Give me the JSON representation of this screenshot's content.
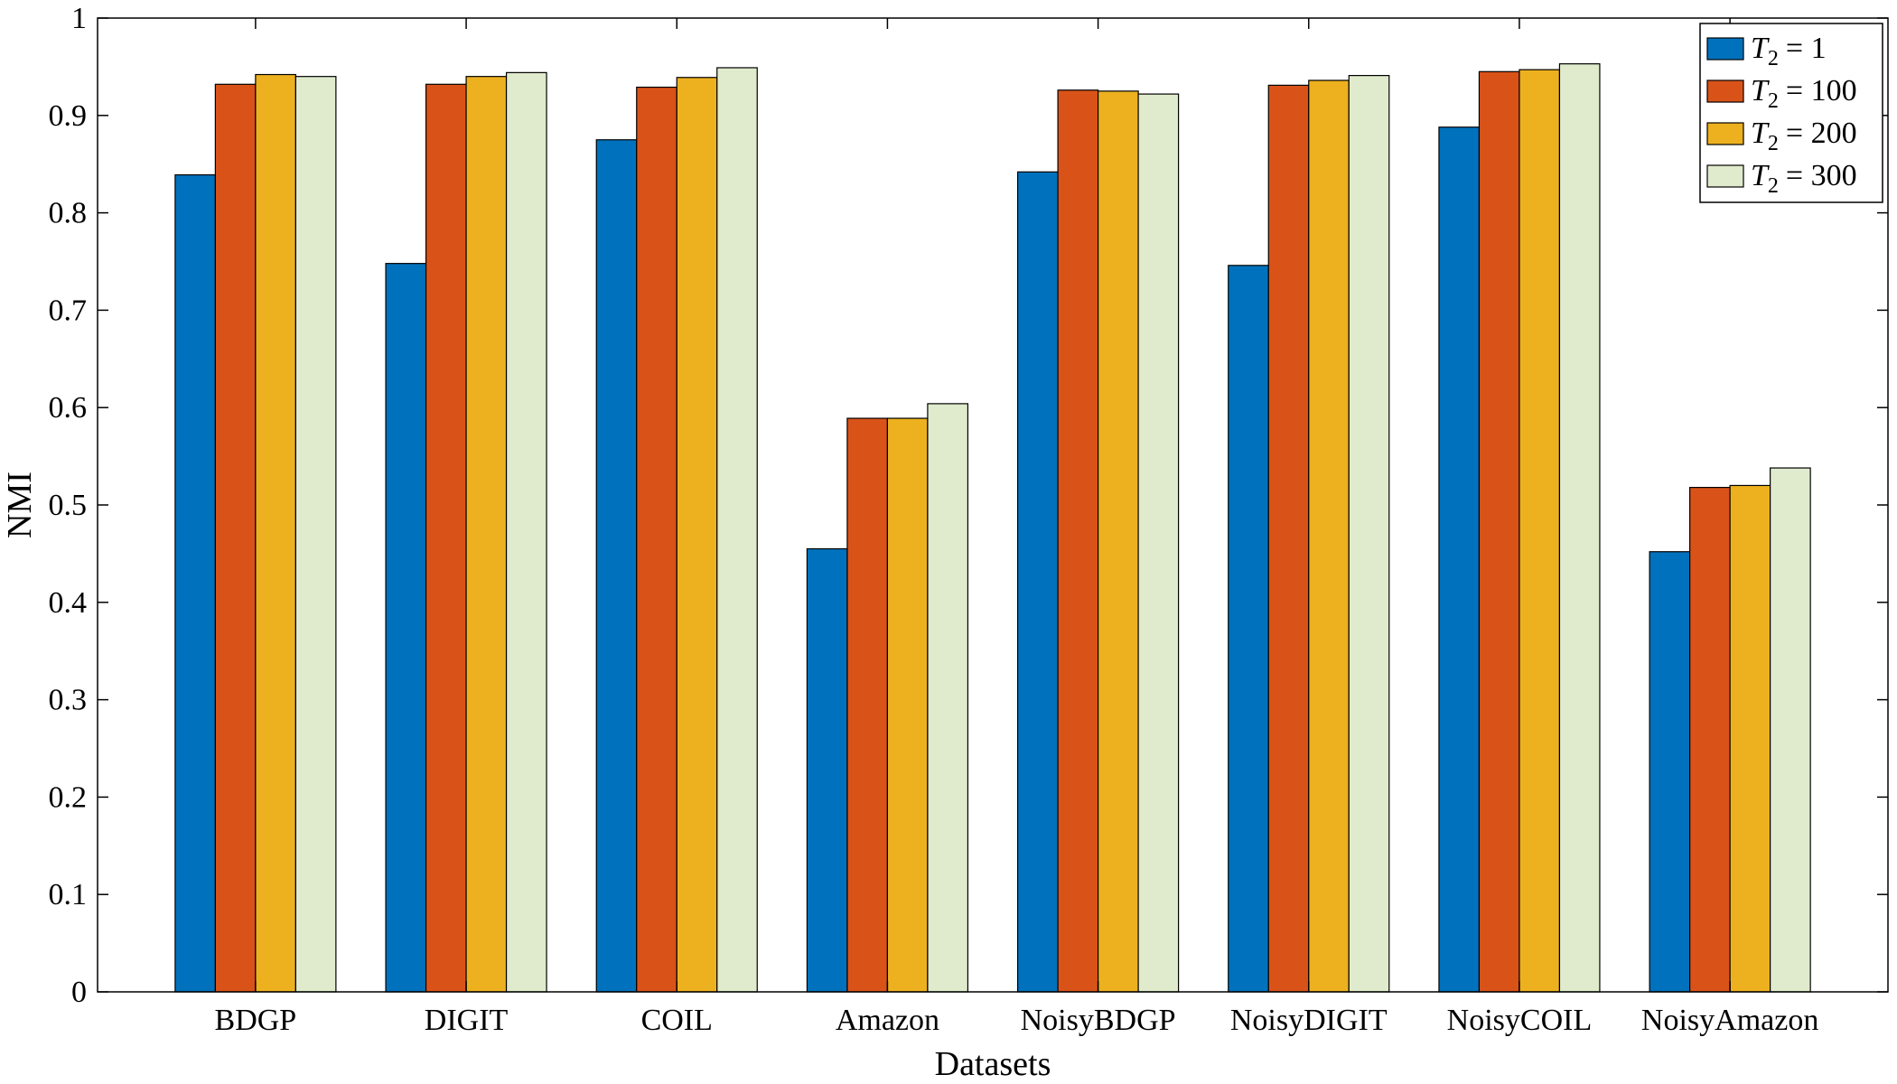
{
  "chart_data": {
    "type": "bar",
    "title": "",
    "xlabel": "Datasets",
    "ylabel": "NMI",
    "ylim": [
      0,
      1
    ],
    "yticks": [
      "0",
      "0.1",
      "0.2",
      "0.3",
      "0.4",
      "0.5",
      "0.6",
      "0.7",
      "0.8",
      "0.9",
      "1"
    ],
    "grid": false,
    "legend_position": "top-right",
    "categories": [
      "BDGP",
      "DIGIT",
      "COIL",
      "Amazon",
      "NoisyBDGP",
      "NoisyDIGIT",
      "NoisyCOIL",
      "NoisyAmazon"
    ],
    "series": [
      {
        "name": "T2 = 1",
        "legend_lhs": "T",
        "legend_sub": "2",
        "legend_rhs": "= 1",
        "color": "#0072BD",
        "values": [
          0.839,
          0.748,
          0.875,
          0.455,
          0.842,
          0.746,
          0.888,
          0.452
        ]
      },
      {
        "name": "T2 = 100",
        "legend_lhs": "T",
        "legend_sub": "2",
        "legend_rhs": "= 100",
        "color": "#D95319",
        "values": [
          0.932,
          0.932,
          0.929,
          0.589,
          0.926,
          0.931,
          0.945,
          0.518
        ]
      },
      {
        "name": "T2 = 200",
        "legend_lhs": "T",
        "legend_sub": "2",
        "legend_rhs": "= 200",
        "color": "#EDB120",
        "values": [
          0.942,
          0.94,
          0.939,
          0.589,
          0.925,
          0.936,
          0.947,
          0.52
        ]
      },
      {
        "name": "T2 = 300",
        "legend_lhs": "T",
        "legend_sub": "2",
        "legend_rhs": "= 300",
        "color": "#E0EBCD",
        "values": [
          0.94,
          0.944,
          0.949,
          0.604,
          0.922,
          0.941,
          0.953,
          0.538
        ]
      }
    ]
  }
}
